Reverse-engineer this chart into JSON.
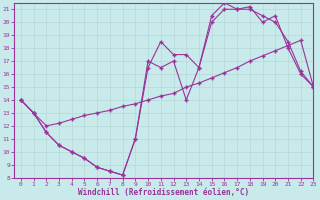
{
  "xlabel": "Windchill (Refroidissement éolien,°C)",
  "xlim": [
    -0.5,
    23
  ],
  "ylim": [
    8,
    21.5
  ],
  "xticks": [
    0,
    1,
    2,
    3,
    4,
    5,
    6,
    7,
    8,
    9,
    10,
    11,
    12,
    13,
    14,
    15,
    16,
    17,
    18,
    19,
    20,
    21,
    22,
    23
  ],
  "yticks": [
    8,
    9,
    10,
    11,
    12,
    13,
    14,
    15,
    16,
    17,
    18,
    19,
    20,
    21
  ],
  "bg_color": "#c8eaea",
  "line_color": "#993399",
  "grid_color": "#b8d8d8",
  "line1_x": [
    0,
    1,
    2,
    3,
    4,
    5,
    6,
    7,
    8,
    9,
    10,
    11,
    12,
    13,
    14,
    15,
    16,
    17,
    18,
    19,
    20,
    21,
    22,
    23
  ],
  "line1_y": [
    14,
    13,
    12,
    12.2,
    12.5,
    12.8,
    13.0,
    13.2,
    13.5,
    13.7,
    14.0,
    14.3,
    14.5,
    15.0,
    15.3,
    15.7,
    16.1,
    16.5,
    17.0,
    17.4,
    17.8,
    18.2,
    18.6,
    15.0
  ],
  "line2_x": [
    0,
    1,
    2,
    3,
    4,
    5,
    6,
    7,
    8,
    9,
    10,
    11,
    12,
    13,
    14,
    15,
    16,
    17,
    18,
    19,
    20,
    21,
    22,
    23
  ],
  "line2_y": [
    14,
    13,
    11.5,
    10.5,
    10.0,
    9.5,
    8.8,
    8.5,
    8.2,
    11.0,
    17.0,
    16.5,
    17.0,
    14.0,
    16.5,
    20.0,
    21.0,
    21.0,
    21.0,
    20.5,
    20.0,
    18.5,
    16.2,
    15.0
  ],
  "line3_x": [
    0,
    1,
    2,
    3,
    4,
    5,
    6,
    7,
    8,
    9,
    10,
    11,
    12,
    13,
    14,
    15,
    16,
    17,
    18,
    19,
    20,
    21,
    22,
    23
  ],
  "line3_y": [
    14,
    13,
    11.5,
    10.5,
    10.0,
    9.5,
    8.8,
    8.5,
    8.2,
    11.0,
    16.5,
    18.5,
    17.5,
    17.5,
    16.5,
    20.5,
    21.5,
    21.0,
    21.2,
    20.0,
    20.5,
    18.0,
    16.0,
    15.0
  ]
}
